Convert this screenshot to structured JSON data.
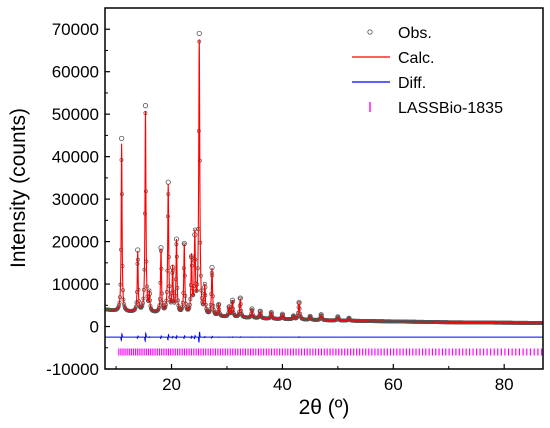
{
  "chart_data": {
    "type": "line",
    "xlabel": "2θ (º)",
    "ylabel": "Intensity (counts)",
    "xlim": [
      8,
      87
    ],
    "ylim": [
      -10000,
      75000
    ],
    "x_ticks": [
      20,
      40,
      60,
      80
    ],
    "y_ticks": [
      -10000,
      0,
      10000,
      20000,
      30000,
      40000,
      50000,
      60000,
      70000
    ],
    "x_tick_labels": [
      "20",
      "40",
      "60",
      "80"
    ],
    "y_tick_labels": [
      "-10000",
      "0",
      "10000",
      "20000",
      "30000",
      "40000",
      "50000",
      "60000",
      "70000"
    ],
    "legend_position": "top-right",
    "background": {
      "x": [
        8,
        9,
        10,
        12,
        14,
        16,
        18,
        20,
        22,
        24,
        26,
        28,
        30,
        32,
        35,
        38,
        40,
        42,
        45,
        48,
        50,
        55,
        60,
        65,
        70,
        75,
        80,
        85,
        87
      ],
      "y": [
        4000,
        3800,
        3600,
        3400,
        3300,
        3200,
        3050,
        2900,
        2750,
        2600,
        2450,
        2300,
        2200,
        2100,
        1950,
        1800,
        1700,
        1650,
        1550,
        1450,
        1400,
        1300,
        1200,
        1100,
        1000,
        950,
        900,
        850,
        850
      ]
    },
    "peaks": [
      {
        "x": 11.0,
        "y": 43000
      },
      {
        "x": 13.9,
        "y": 17500
      },
      {
        "x": 15.3,
        "y": 50500
      },
      {
        "x": 16.0,
        "y": 7500
      },
      {
        "x": 18.1,
        "y": 18000
      },
      {
        "x": 19.4,
        "y": 33000
      },
      {
        "x": 20.2,
        "y": 13500
      },
      {
        "x": 20.9,
        "y": 20000
      },
      {
        "x": 22.3,
        "y": 19000
      },
      {
        "x": 23.6,
        "y": 16000
      },
      {
        "x": 24.2,
        "y": 21000
      },
      {
        "x": 25.0,
        "y": 67000
      },
      {
        "x": 26.0,
        "y": 9000
      },
      {
        "x": 27.3,
        "y": 13500
      },
      {
        "x": 28.5,
        "y": 5000
      },
      {
        "x": 30.4,
        "y": 4500
      },
      {
        "x": 31.0,
        "y": 6000
      },
      {
        "x": 32.4,
        "y": 6500
      },
      {
        "x": 34.5,
        "y": 4000
      },
      {
        "x": 36.0,
        "y": 3500
      },
      {
        "x": 38.0,
        "y": 3200
      },
      {
        "x": 40.0,
        "y": 2800
      },
      {
        "x": 42.0,
        "y": 2400
      },
      {
        "x": 43.0,
        "y": 5500
      },
      {
        "x": 45.0,
        "y": 2300
      },
      {
        "x": 47.0,
        "y": 2700
      },
      {
        "x": 50.0,
        "y": 2200
      },
      {
        "x": 52.0,
        "y": 1900
      }
    ],
    "diff_baseline": -2500,
    "reflection_marker_y": -6000,
    "reflection_range": [
      10.5,
      87
    ],
    "series": [
      {
        "name": "Obs.",
        "style": "open-circle",
        "color": "#555555"
      },
      {
        "name": "Calc.",
        "style": "line",
        "color": "#ff0000"
      },
      {
        "name": "Diff.",
        "style": "line",
        "color": "#0000ff"
      },
      {
        "name": "LASSBio-1835",
        "style": "tick",
        "color": "#ff00ff"
      }
    ]
  }
}
